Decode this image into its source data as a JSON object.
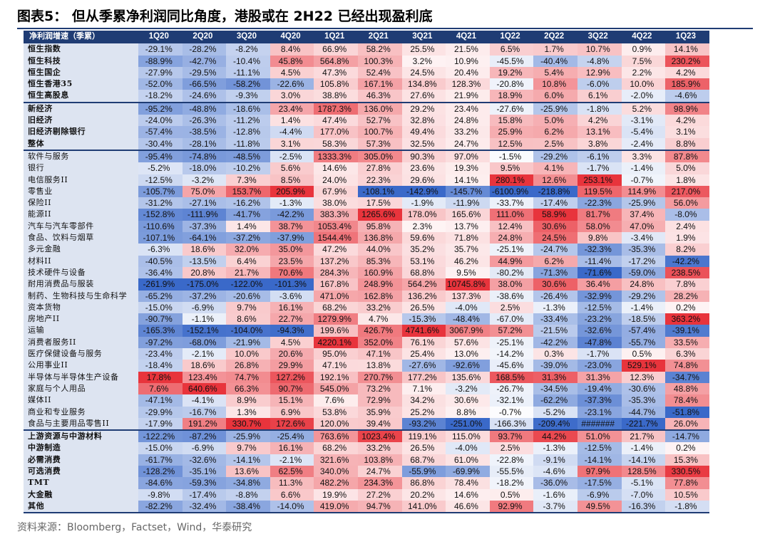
{
  "title": "图表5：  但从季累净利润同比角度，港股或在 2H22 已经出现盈利底",
  "source": "资料来源：Bloomberg，Factset，Wind，华泰研究",
  "colors": {
    "header": "#1f3c74",
    "label_bg": "#dde4f1",
    "positive": "#e8323c",
    "negative": "#3a69c9"
  },
  "chart_data": {
    "type": "table",
    "header_label": "净利润增速（季累）",
    "columns": [
      "1Q20",
      "2Q20",
      "3Q20",
      "4Q20",
      "1Q21",
      "2Q21",
      "3Q21",
      "4Q21",
      "1Q22",
      "2Q22",
      "3Q22",
      "4Q22",
      "1Q23"
    ],
    "groups": [
      {
        "bold": true,
        "rows": [
          {
            "label": "恒生指数",
            "values": [
              "-29.1%",
              "-28.2%",
              "-8.2%",
              "8.4%",
              "66.9%",
              "58.2%",
              "25.5%",
              "21.5%",
              "6.5%",
              "1.7%",
              "10.7%",
              "0.9%",
              "14.1%"
            ]
          },
          {
            "label": "恒生科技",
            "values": [
              "-88.9%",
              "-42.7%",
              "-10.4%",
              "45.8%",
              "564.8%",
              "100.3%",
              "3.2%",
              "10.9%",
              "-45.5%",
              "-40.4%",
              "-4.8%",
              "7.5%",
              "230.2%"
            ]
          },
          {
            "label": "恒生国企",
            "values": [
              "-27.9%",
              "-29.5%",
              "-11.1%",
              "4.5%",
              "47.3%",
              "52.4%",
              "24.5%",
              "20.4%",
              "19.2%",
              "5.4%",
              "12.9%",
              "2.2%",
              "4.2%"
            ]
          },
          {
            "label": "恒生香港35",
            "values": [
              "-52.0%",
              "-66.5%",
              "-58.2%",
              "-22.6%",
              "105.8%",
              "167.1%",
              "134.8%",
              "128.3%",
              "-20.8%",
              "10.8%",
              "-6.0%",
              "10.0%",
              "185.9%"
            ]
          },
          {
            "label": "恒生高股息",
            "values": [
              "-18.2%",
              "-24.6%",
              "-9.3%",
              "3.0%",
              "38.8%",
              "46.3%",
              "27.6%",
              "21.9%",
              "18.9%",
              "6.0%",
              "6.1%",
              "-2.0%",
              "-4.6%"
            ]
          }
        ]
      },
      {
        "bold": true,
        "rows": [
          {
            "label": "新经济",
            "values": [
              "-95.2%",
              "-48.8%",
              "-18.6%",
              "23.4%",
              "1787.3%",
              "136.0%",
              "29.2%",
              "23.4%",
              "-27.6%",
              "-25.9%",
              "-1.8%",
              "5.2%",
              "98.9%"
            ]
          },
          {
            "label": "旧经济",
            "values": [
              "-24.0%",
              "-26.3%",
              "-11.2%",
              "1.4%",
              "47.4%",
              "52.7%",
              "32.8%",
              "24.8%",
              "15.8%",
              "5.0%",
              "4.2%",
              "-3.1%",
              "4.2%"
            ]
          },
          {
            "label": "旧经济剔除银行",
            "values": [
              "-57.4%",
              "-38.5%",
              "-12.8%",
              "-4.4%",
              "177.0%",
              "100.7%",
              "49.4%",
              "33.2%",
              "25.9%",
              "6.2%",
              "13.1%",
              "-5.4%",
              "3.1%"
            ]
          },
          {
            "label": "整体",
            "values": [
              "-30.4%",
              "-28.1%",
              "-11.8%",
              "3.1%",
              "58.3%",
              "57.3%",
              "32.5%",
              "24.7%",
              "12.5%",
              "2.5%",
              "3.8%",
              "-2.4%",
              "8.8%"
            ]
          }
        ]
      },
      {
        "bold": false,
        "rows": [
          {
            "label": "软件与服务",
            "values": [
              "-95.4%",
              "-74.8%",
              "-48.5%",
              "-2.5%",
              "1333.3%",
              "305.0%",
              "90.3%",
              "97.0%",
              "-1.5%",
              "-29.2%",
              "-6.1%",
              "3.3%",
              "87.8%"
            ]
          },
          {
            "label": "银行",
            "values": [
              "-5.2%",
              "-18.0%",
              "-10.2%",
              "5.6%",
              "14.6%",
              "27.8%",
              "23.6%",
              "19.3%",
              "9.5%",
              "4.1%",
              "-1.7%",
              "-1.4%",
              "5.0%"
            ]
          },
          {
            "label": "电信服务II",
            "values": [
              "-12.5%",
              "-3.2%",
              "7.3%",
              "8.5%",
              "24.0%",
              "22.3%",
              "29.6%",
              "14.1%",
              "280.1%",
              "12.6%",
              "253.1%",
              "-0.7%",
              "1.8%"
            ]
          },
          {
            "label": "零售业",
            "values": [
              "-105.7%",
              "75.0%",
              "153.7%",
              "205.9%",
              "67.9%",
              "-108.1%",
              "-142.9%",
              "-145.7%",
              "-6100.9%",
              "-218.8%",
              "119.5%",
              "114.9%",
              "217.0%"
            ]
          },
          {
            "label": "保险II",
            "values": [
              "-31.2%",
              "-27.1%",
              "-16.2%",
              "-1.3%",
              "38.0%",
              "17.5%",
              "-1.9%",
              "-11.9%",
              "-33.7%",
              "-17.4%",
              "-22.3%",
              "-25.9%",
              "56.0%"
            ]
          },
          {
            "label": "能源II",
            "values": [
              "-152.8%",
              "-111.9%",
              "-41.7%",
              "-42.2%",
              "383.3%",
              "1265.6%",
              "178.0%",
              "165.6%",
              "111.0%",
              "58.9%",
              "81.7%",
              "37.4%",
              "-8.0%"
            ]
          },
          {
            "label": "汽车与汽车零部件",
            "values": [
              "-110.6%",
              "-37.3%",
              "1.4%",
              "38.7%",
              "1053.4%",
              "95.8%",
              "2.3%",
              "13.7%",
              "12.4%",
              "30.6%",
              "58.0%",
              "47.0%",
              "2.4%"
            ]
          },
          {
            "label": "食品、饮料与烟草",
            "values": [
              "-107.1%",
              "-64.1%",
              "-37.2%",
              "-37.9%",
              "1544.4%",
              "136.8%",
              "59.6%",
              "71.8%",
              "24.8%",
              "24.5%",
              "9.8%",
              "-3.4%",
              "1.9%"
            ]
          },
          {
            "label": "多元金融",
            "values": [
              "-6.3%",
              "18.6%",
              "32.0%",
              "35.0%",
              "47.2%",
              "44.0%",
              "35.2%",
              "35.7%",
              "-25.1%",
              "-24.7%",
              "-32.3%",
              "-35.3%",
              "8.2%"
            ]
          },
          {
            "label": "材料II",
            "values": [
              "-40.5%",
              "-13.5%",
              "6.4%",
              "23.5%",
              "137.2%",
              "85.3%",
              "53.1%",
              "46.2%",
              "44.9%",
              "6.2%",
              "-11.4%",
              "-17.2%",
              "-42.2%"
            ]
          },
          {
            "label": "技术硬件与设备",
            "values": [
              "-36.4%",
              "20.8%",
              "21.7%",
              "70.6%",
              "284.3%",
              "160.9%",
              "68.8%",
              "9.5%",
              "-80.2%",
              "-71.3%",
              "-71.6%",
              "-59.0%",
              "238.5%"
            ]
          },
          {
            "label": "耐用消费品与服装",
            "values": [
              "-261.9%",
              "-175.0%",
              "-122.0%",
              "-101.3%",
              "167.8%",
              "248.9%",
              "564.2%",
              "10745.8%",
              "38.0%",
              "30.6%",
              "36.4%",
              "24.8%",
              "7.8%"
            ]
          },
          {
            "label": "制药、生物科技与生命科学",
            "values": [
              "-65.2%",
              "-37.2%",
              "-20.6%",
              "-3.6%",
              "471.0%",
              "162.8%",
              "136.2%",
              "137.3%",
              "-38.6%",
              "-26.4%",
              "-32.9%",
              "-29.2%",
              "28.2%"
            ]
          },
          {
            "label": "资本货物",
            "values": [
              "-15.0%",
              "-6.9%",
              "9.7%",
              "16.1%",
              "68.2%",
              "33.2%",
              "26.5%",
              "-4.0%",
              "2.5%",
              "-1.3%",
              "-12.5%",
              "-1.4%",
              "0.2%"
            ]
          },
          {
            "label": "房地产II",
            "values": [
              "-90.7%",
              "-1.1%",
              "8.6%",
              "22.7%",
              "1279.9%",
              "4.7%",
              "-15.3%",
              "-48.4%",
              "-67.0%",
              "-33.4%",
              "-23.2%",
              "-18.5%",
              "363.2%"
            ]
          },
          {
            "label": "运输",
            "values": [
              "-165.3%",
              "-152.1%",
              "-104.0%",
              "-94.3%",
              "199.6%",
              "426.7%",
              "4741.6%",
              "3067.9%",
              "57.2%",
              "-21.5%",
              "-32.6%",
              "-57.4%",
              "-39.1%"
            ]
          },
          {
            "label": "消费者服务II",
            "values": [
              "-97.2%",
              "-68.0%",
              "-21.9%",
              "4.5%",
              "4220.1%",
              "352.0%",
              "76.1%",
              "57.6%",
              "-25.1%",
              "-42.2%",
              "-47.8%",
              "-55.7%",
              "33.5%"
            ]
          },
          {
            "label": "医疗保健设备与服务",
            "values": [
              "-23.4%",
              "-2.1%",
              "10.0%",
              "20.6%",
              "95.0%",
              "47.1%",
              "25.4%",
              "13.0%",
              "-14.2%",
              "0.3%",
              "-1.7%",
              "0.5%",
              "6.3%"
            ]
          },
          {
            "label": "公用事业II",
            "values": [
              "-18.4%",
              "18.6%",
              "26.8%",
              "29.9%",
              "47.1%",
              "13.8%",
              "-27.6%",
              "-92.6%",
              "-45.6%",
              "-39.0%",
              "-23.0%",
              "529.1%",
              "74.8%"
            ]
          },
          {
            "label": "半导体与半导体生产设备",
            "values": [
              "17.8%",
              "123.4%",
              "74.7%",
              "127.2%",
              "192.1%",
              "270.7%",
              "177.2%",
              "135.6%",
              "168.5%",
              "31.3%",
              "31.3%",
              "12.3%",
              "-34.7%"
            ]
          },
          {
            "label": "家庭与个人用品",
            "values": [
              "7.6%",
              "640.6%",
              "66.3%",
              "90.7%",
              "545.0%",
              "73.2%",
              "7.1%",
              "-3.2%",
              "-26.7%",
              "-34.5%",
              "-19.4%",
              "-30.6%",
              "48.8%"
            ]
          },
          {
            "label": "媒体II",
            "values": [
              "-47.1%",
              "-4.1%",
              "8.9%",
              "15.1%",
              "7.6%",
              "72.9%",
              "34.2%",
              "30.6%",
              "-32.1%",
              "-62.2%",
              "-37.3%",
              "-35.3%",
              "78.4%"
            ]
          },
          {
            "label": "商业和专业服务",
            "values": [
              "-29.9%",
              "-16.7%",
              "1.3%",
              "6.9%",
              "53.8%",
              "35.9%",
              "25.2%",
              "8.8%",
              "-0.7%",
              "-5.2%",
              "-23.1%",
              "-44.7%",
              "-51.8%"
            ]
          },
          {
            "label": "食品与主要用品零售II",
            "values": [
              "-17.9%",
              "191.2%",
              "330.7%",
              "172.6%",
              "120.0%",
              "39.4%",
              "-93.2%",
              "-251.0%",
              "-166.3%",
              "-209.4%",
              "#######",
              "-221.7%",
              "26.0%"
            ]
          }
        ]
      },
      {
        "bold": true,
        "rows": [
          {
            "label": "上游资源与中游材料",
            "values": [
              "-122.2%",
              "-87.2%",
              "-25.9%",
              "-25.4%",
              "763.6%",
              "1023.4%",
              "119.1%",
              "115.0%",
              "93.7%",
              "44.2%",
              "51.0%",
              "21.7%",
              "-14.7%"
            ]
          },
          {
            "label": "中游制造",
            "values": [
              "-15.0%",
              "-6.9%",
              "9.7%",
              "16.1%",
              "68.2%",
              "33.2%",
              "26.5%",
              "-4.0%",
              "2.5%",
              "-1.3%",
              "-12.5%",
              "-1.4%",
              "0.2%"
            ]
          },
          {
            "label": "必需消费",
            "values": [
              "-61.7%",
              "-32.6%",
              "-14.1%",
              "-2.1%",
              "321.6%",
              "103.8%",
              "68.7%",
              "61.0%",
              "-22.8%",
              "-9.1%",
              "-14.1%",
              "-14.1%",
              "15.3%"
            ]
          },
          {
            "label": "可选消费",
            "values": [
              "-128.2%",
              "-35.1%",
              "13.6%",
              "62.5%",
              "340.0%",
              "24.7%",
              "-55.9%",
              "-69.9%",
              "-55.5%",
              "-4.6%",
              "97.9%",
              "128.5%",
              "330.5%"
            ]
          },
          {
            "label": "TMT",
            "values": [
              "-84.6%",
              "-59.3%",
              "-34.8%",
              "11.3%",
              "482.2%",
              "234.3%",
              "86.8%",
              "78.4%",
              "-18.2%",
              "-36.0%",
              "-17.5%",
              "-5.1%",
              "77.8%"
            ]
          },
          {
            "label": "大金融",
            "values": [
              "-9.8%",
              "-17.4%",
              "-8.8%",
              "6.6%",
              "19.9%",
              "27.2%",
              "20.2%",
              "14.6%",
              "0.5%",
              "-1.6%",
              "-6.9%",
              "-7.0%",
              "10.5%"
            ]
          },
          {
            "label": "其他",
            "values": [
              "-82.2%",
              "-32.4%",
              "-38.4%",
              "-14.0%",
              "419.0%",
              "94.7%",
              "141.0%",
              "46.6%",
              "92.9%",
              "-3.7%",
              "49.5%",
              "-16.3%",
              "-1.8%"
            ]
          }
        ]
      }
    ]
  }
}
